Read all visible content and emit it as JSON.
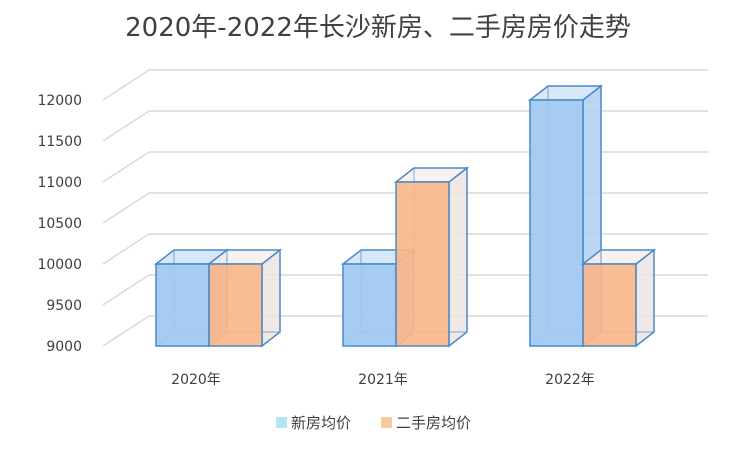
{
  "chart_data": {
    "type": "bar",
    "title": "2020年-2022年长沙新房、二手房房价走势",
    "categories": [
      "2020年",
      "2021年",
      "2022年"
    ],
    "series": [
      {
        "name": "新房均价",
        "values": [
          10000,
          10000,
          12000
        ],
        "color": "#9fc8f0",
        "side_color": "#aecfee",
        "top_color": "#cfe3f6",
        "stroke": "#4a8ac8"
      },
      {
        "name": "二手房均价",
        "values": [
          10000,
          11000,
          10000
        ],
        "color": "#f8b68a",
        "side_color": "#ece4e0",
        "top_color": "#f6efec",
        "stroke": "#4a8ac8"
      }
    ],
    "legend_swatch_colors": [
      "#b7e4f4",
      "#f8c89e"
    ],
    "ylim": [
      9000,
      12000
    ],
    "yticks": [
      9000,
      9500,
      10000,
      10500,
      11000,
      11500,
      12000
    ],
    "xlabel": "",
    "ylabel": "",
    "grid": true,
    "legend_position": "bottom"
  }
}
